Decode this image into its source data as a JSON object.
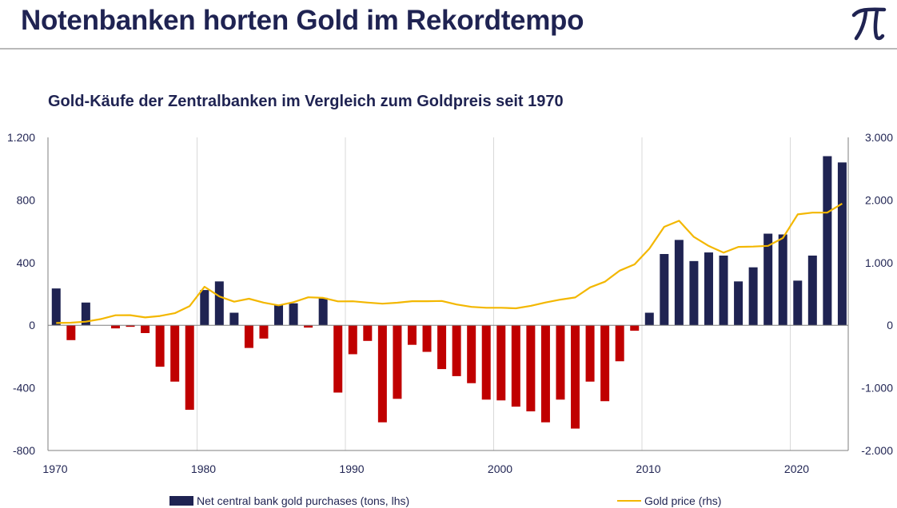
{
  "header": {
    "title": "Notenbanken horten Gold im Rekordtempo"
  },
  "logo": {
    "icon": "pi-logo-icon"
  },
  "colors": {
    "navy": "#1f2352",
    "red": "#c00000",
    "gold": "#f3b700",
    "grid": "#d9d9d9",
    "axis": "#7f7f7f"
  },
  "chart_data": {
    "type": "bar",
    "title": "Gold-Käufe der Zentralbanken im Vergleich zum Goldpreis seit 1970",
    "xlabel": "",
    "ylabel": "",
    "x": [
      1970,
      1971,
      1972,
      1973,
      1974,
      1975,
      1976,
      1977,
      1978,
      1979,
      1980,
      1981,
      1982,
      1983,
      1984,
      1985,
      1986,
      1987,
      1988,
      1989,
      1990,
      1991,
      1992,
      1993,
      1994,
      1995,
      1996,
      1997,
      1998,
      1999,
      2000,
      2001,
      2002,
      2003,
      2004,
      2005,
      2006,
      2007,
      2008,
      2009,
      2010,
      2011,
      2012,
      2013,
      2014,
      2015,
      2016,
      2017,
      2018,
      2019,
      2020,
      2021,
      2022,
      2023
    ],
    "x_ticks": [
      "1970",
      "1980",
      "1990",
      "2000",
      "2010",
      "2020"
    ],
    "x_tick_values": [
      1970,
      1980,
      1990,
      2000,
      2010,
      2020
    ],
    "series": [
      {
        "name": "Net central bank gold purchases (tons, lhs)",
        "axis": "left",
        "type": "bar",
        "values": [
          235,
          -95,
          145,
          0,
          -20,
          -10,
          -50,
          -265,
          -360,
          -540,
          225,
          280,
          80,
          -145,
          -85,
          130,
          140,
          -15,
          175,
          -430,
          -185,
          -100,
          -620,
          -470,
          -125,
          -170,
          -280,
          -325,
          -370,
          -475,
          -480,
          -520,
          -550,
          -620,
          -475,
          -660,
          -360,
          -485,
          -230,
          -35,
          80,
          455,
          545,
          410,
          465,
          445,
          280,
          370,
          585,
          580,
          285,
          445,
          1080,
          1040
        ]
      },
      {
        "name": "Gold price (rhs)",
        "axis": "right",
        "type": "line",
        "values": [
          36,
          41,
          58,
          98,
          159,
          161,
          125,
          148,
          193,
          306,
          615,
          460,
          376,
          424,
          361,
          317,
          368,
          447,
          437,
          381,
          383,
          362,
          344,
          360,
          384,
          384,
          388,
          331,
          294,
          279,
          279,
          271,
          310,
          363,
          409,
          444,
          604,
          695,
          872,
          972,
          1225,
          1572,
          1669,
          1411,
          1266,
          1160,
          1251,
          1257,
          1268,
          1393,
          1770,
          1799,
          1800,
          1943
        ]
      }
    ],
    "y_left": {
      "lim": [
        -800,
        1200
      ],
      "ticks": [
        -800,
        -400,
        0,
        400,
        800,
        1200
      ],
      "tick_labels": [
        "-800",
        "-400",
        "0",
        "400",
        "800",
        "1.200"
      ]
    },
    "y_right": {
      "lim": [
        -2000,
        3000
      ],
      "ticks": [
        -2000,
        -1000,
        0,
        1000,
        2000,
        3000
      ],
      "tick_labels": [
        "-2.000",
        "-1.000",
        "0",
        "1.000",
        "2.000",
        "3.000"
      ]
    },
    "grid": "vertical",
    "legend_position": "bottom"
  }
}
